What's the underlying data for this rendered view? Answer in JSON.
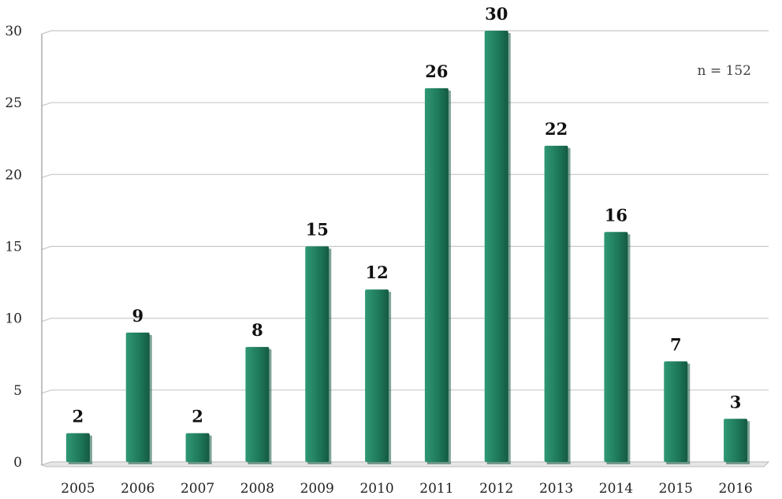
{
  "chart_data": {
    "type": "bar",
    "title": "",
    "xlabel": "",
    "ylabel": "",
    "categories": [
      "2005",
      "2006",
      "2007",
      "2008",
      "2009",
      "2010",
      "2011",
      "2012",
      "2013",
      "2014",
      "2015",
      "2016"
    ],
    "values": [
      2,
      9,
      2,
      8,
      15,
      12,
      26,
      30,
      22,
      16,
      7,
      3
    ],
    "ylim": [
      0,
      30
    ],
    "yticks": [
      0,
      5,
      10,
      15,
      20,
      25,
      30
    ],
    "grid": true,
    "legend": "none",
    "annotation": "n = 152",
    "colors": {
      "bar": "#1f7a5c",
      "bar_dark": "#145a43",
      "bar_light": "#2f9874",
      "grid": "#c8c8c8"
    }
  }
}
